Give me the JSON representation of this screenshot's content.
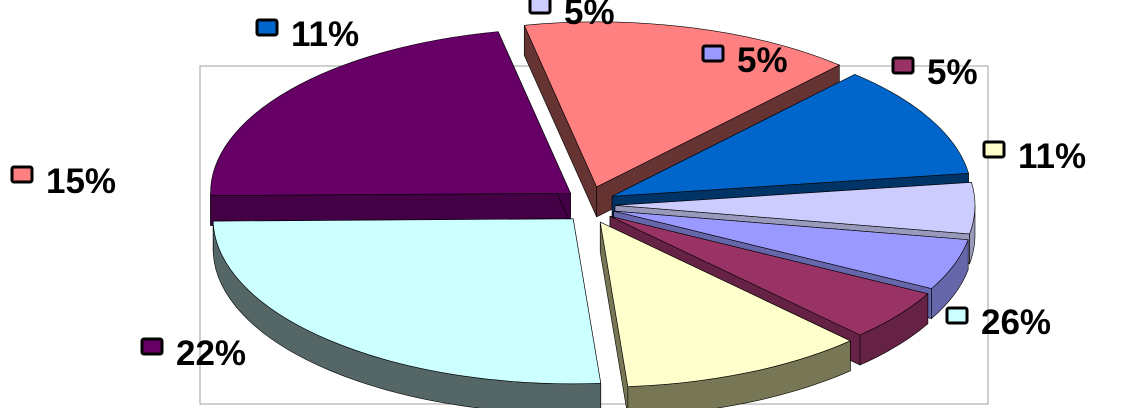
{
  "chart_data": {
    "type": "pie",
    "style": "3d-exploded",
    "title": "",
    "legend": "none",
    "slices": [
      {
        "label": "5%",
        "value": 5,
        "color": "#ccccff",
        "side": "#9999bb"
      },
      {
        "label": "5%",
        "value": 5,
        "color": "#9999ff",
        "side": "#6666aa"
      },
      {
        "label": "5%",
        "value": 5,
        "color": "#993366",
        "side": "#662244"
      },
      {
        "label": "11%",
        "value": 11,
        "color": "#ffffcc",
        "side": "#777755"
      },
      {
        "label": "26%",
        "value": 26,
        "color": "#ccffff",
        "side": "#556666"
      },
      {
        "label": "22%",
        "value": 22,
        "color": "#660066",
        "side": "#440044"
      },
      {
        "label": "15%",
        "value": 15,
        "color": "#ff8080",
        "side": "#663333"
      },
      {
        "label": "11%",
        "value": 11,
        "color": "#0066cc",
        "side": "#003366"
      }
    ]
  }
}
